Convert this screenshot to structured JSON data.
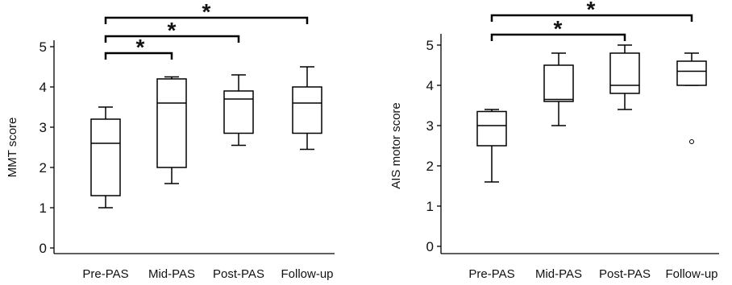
{
  "chart_data": [
    {
      "type": "boxplot",
      "ylabel": "MMT score",
      "ylim": [
        0,
        5
      ],
      "yticks": [
        "0",
        "1",
        "2",
        "3",
        "4",
        "5"
      ],
      "categories": [
        "Pre-PAS",
        "Mid-PAS",
        "Post-PAS",
        "Follow-up"
      ],
      "boxes": [
        {
          "min": 1.0,
          "q1": 1.3,
          "median": 2.6,
          "q3": 3.2,
          "max": 3.5,
          "outliers": []
        },
        {
          "min": 1.6,
          "q1": 2.0,
          "median": 3.6,
          "q3": 4.2,
          "max": 4.25,
          "outliers": []
        },
        {
          "min": 2.55,
          "q1": 2.85,
          "median": 3.7,
          "q3": 3.9,
          "max": 4.3,
          "outliers": []
        },
        {
          "min": 2.45,
          "q1": 2.85,
          "median": 3.6,
          "q3": 4.0,
          "max": 4.5,
          "outliers": []
        }
      ],
      "significance": [
        {
          "from": "Pre-PAS",
          "to": "Mid-PAS",
          "label": "*"
        },
        {
          "from": "Pre-PAS",
          "to": "Post-PAS",
          "label": "*"
        },
        {
          "from": "Pre-PAS",
          "to": "Follow-up",
          "label": "*"
        }
      ]
    },
    {
      "type": "boxplot",
      "ylabel": "AIS motor score",
      "ylim": [
        0,
        5
      ],
      "yticks": [
        "0",
        "1",
        "2",
        "3",
        "4",
        "5"
      ],
      "categories": [
        "Pre-PAS",
        "Mid-PAS",
        "Post-PAS",
        "Follow-up"
      ],
      "boxes": [
        {
          "min": 1.6,
          "q1": 2.5,
          "median": 3.0,
          "q3": 3.35,
          "max": 3.4,
          "outliers": []
        },
        {
          "min": 3.0,
          "q1": 3.6,
          "median": 3.65,
          "q3": 4.5,
          "max": 4.8,
          "outliers": []
        },
        {
          "min": 3.4,
          "q1": 3.8,
          "median": 4.0,
          "q3": 4.8,
          "max": 5.0,
          "outliers": []
        },
        {
          "min": 4.0,
          "q1": 4.0,
          "median": 4.35,
          "q3": 4.6,
          "max": 4.8,
          "outliers": [
            2.6
          ]
        }
      ],
      "significance": [
        {
          "from": "Pre-PAS",
          "to": "Post-PAS",
          "label": "*"
        },
        {
          "from": "Pre-PAS",
          "to": "Follow-up",
          "label": "*"
        }
      ]
    }
  ]
}
